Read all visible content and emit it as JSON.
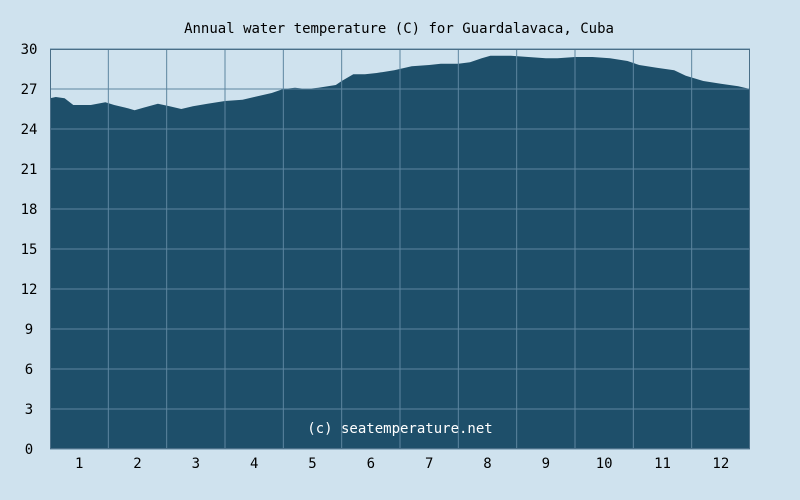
{
  "chart_data": {
    "type": "area",
    "title": "Annual water temperature (C) for Guardalavaca, Cuba",
    "credit": "(c) seatemperature.net",
    "xlabel": "",
    "ylabel": "",
    "x_categories": [
      "1",
      "2",
      "3",
      "4",
      "5",
      "6",
      "7",
      "8",
      "9",
      "10",
      "11",
      "12"
    ],
    "y_ticks": [
      "0",
      "3",
      "6",
      "9",
      "12",
      "15",
      "18",
      "21",
      "24",
      "27",
      "30"
    ],
    "ylim": [
      0,
      30
    ],
    "grid": true,
    "x_unit": "month",
    "series": [
      {
        "points": [
          [
            0.5,
            26.3
          ],
          [
            0.6,
            26.4
          ],
          [
            0.75,
            26.3
          ],
          [
            0.9,
            25.8
          ],
          [
            1.0,
            25.8
          ],
          [
            1.2,
            25.8
          ],
          [
            1.45,
            26.0
          ],
          [
            1.6,
            25.8
          ],
          [
            1.8,
            25.6
          ],
          [
            1.95,
            25.4
          ],
          [
            2.1,
            25.6
          ],
          [
            2.35,
            25.9
          ],
          [
            2.55,
            25.7
          ],
          [
            2.75,
            25.5
          ],
          [
            2.95,
            25.7
          ],
          [
            3.2,
            25.9
          ],
          [
            3.5,
            26.1
          ],
          [
            3.8,
            26.2
          ],
          [
            4.0,
            26.4
          ],
          [
            4.3,
            26.7
          ],
          [
            4.5,
            27.0
          ],
          [
            4.7,
            27.1
          ],
          [
            4.9,
            27.0
          ],
          [
            5.1,
            27.1
          ],
          [
            5.4,
            27.3
          ],
          [
            5.5,
            27.6
          ],
          [
            5.7,
            28.1
          ],
          [
            5.9,
            28.1
          ],
          [
            6.1,
            28.2
          ],
          [
            6.4,
            28.4
          ],
          [
            6.7,
            28.7
          ],
          [
            7.0,
            28.8
          ],
          [
            7.2,
            28.9
          ],
          [
            7.5,
            28.9
          ],
          [
            7.7,
            29.0
          ],
          [
            7.9,
            29.3
          ],
          [
            8.05,
            29.5
          ],
          [
            8.4,
            29.5
          ],
          [
            8.7,
            29.4
          ],
          [
            9.0,
            29.3
          ],
          [
            9.2,
            29.3
          ],
          [
            9.5,
            29.4
          ],
          [
            9.8,
            29.4
          ],
          [
            10.1,
            29.3
          ],
          [
            10.4,
            29.1
          ],
          [
            10.6,
            28.8
          ],
          [
            10.9,
            28.6
          ],
          [
            11.2,
            28.4
          ],
          [
            11.4,
            28.0
          ],
          [
            11.7,
            27.6
          ],
          [
            12.0,
            27.4
          ],
          [
            12.3,
            27.2
          ],
          [
            12.5,
            27.0
          ]
        ]
      }
    ]
  },
  "colors": {
    "page_background": "#cfe2ee",
    "plot_fill": "#1e4f6a",
    "grid_line": "#5d86a0",
    "frame": "#4a6f88",
    "axis_text": "#000000",
    "credit_text": "#ffffff"
  }
}
